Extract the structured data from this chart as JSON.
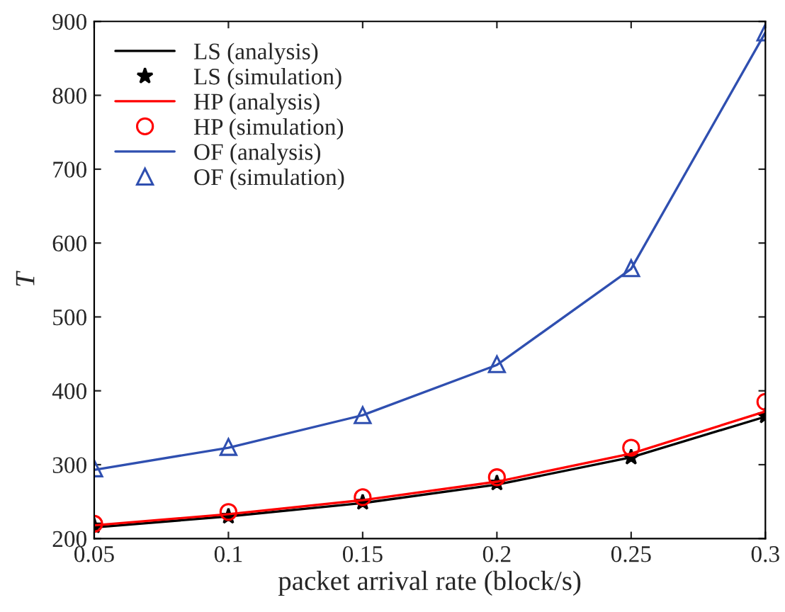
{
  "chart_data": {
    "type": "line",
    "xlabel": "packet arrival rate (block/s)",
    "ylabel": "T",
    "x": [
      0.05,
      0.1,
      0.15,
      0.2,
      0.25,
      0.3
    ],
    "xlim": [
      0.05,
      0.3
    ],
    "xticks": [
      0.05,
      0.1,
      0.15,
      0.2,
      0.25,
      0.3
    ],
    "ylim": [
      200,
      900
    ],
    "yticks": [
      200,
      300,
      400,
      500,
      600,
      700,
      800,
      900
    ],
    "grid": false,
    "legend": "top left",
    "series": [
      {
        "name": "LS (analysis)",
        "color": "#000000",
        "marker": "none",
        "values": [
          215,
          230,
          248,
          273,
          310,
          365
        ]
      },
      {
        "name": "LS (simulation)",
        "type": "scatter",
        "color": "#000000",
        "marker": "star",
        "values": [
          217,
          230,
          249,
          275,
          310,
          366
        ]
      },
      {
        "name": "HP (analysis)",
        "color": "#ff0000",
        "marker": "none",
        "values": [
          218,
          233,
          252,
          277,
          315,
          372
        ]
      },
      {
        "name": "HP (simulation)",
        "type": "scatter",
        "color": "#ff0000",
        "marker": "circle",
        "values": [
          220,
          236,
          256,
          283,
          323,
          385
        ]
      },
      {
        "name": "OF (analysis)",
        "color": "#2f4fb0",
        "marker": "none",
        "values": [
          293,
          323,
          367,
          435,
          565,
          885
        ]
      },
      {
        "name": "OF (simulation)",
        "type": "scatter",
        "color": "#2f4fb0",
        "marker": "triangle",
        "values": [
          295,
          324,
          367,
          436,
          566,
          885
        ]
      }
    ]
  }
}
